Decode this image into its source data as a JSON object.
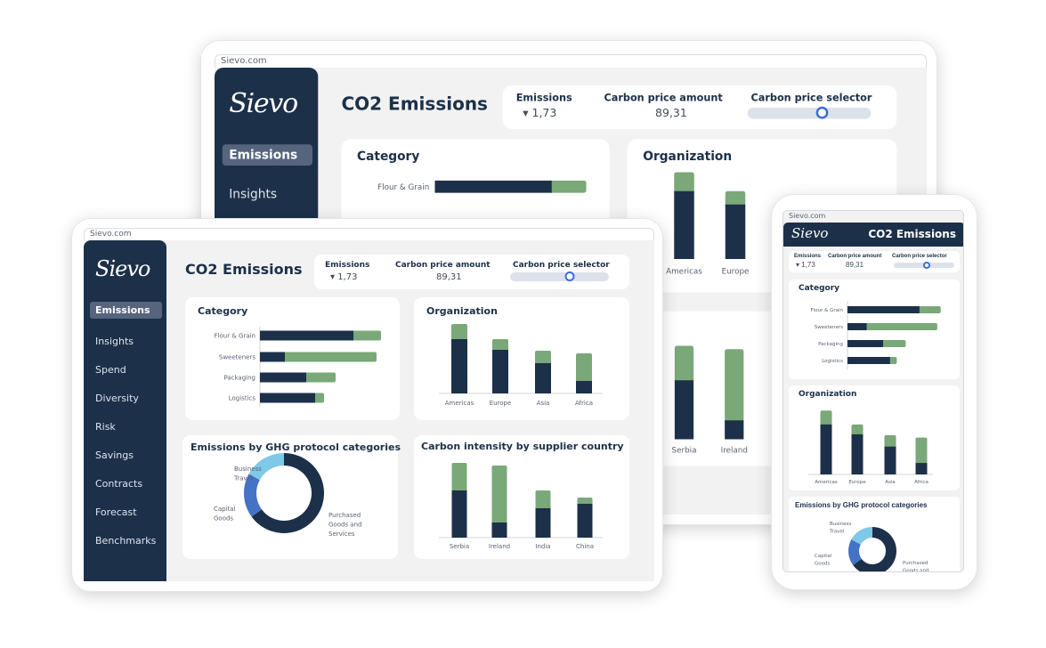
{
  "browser": {
    "url": "Sievo.com"
  },
  "app": {
    "logo": "Sievo",
    "page_title": "CO2 Emissions",
    "nav": [
      {
        "label": "Emissions",
        "active": true
      },
      {
        "label": "Insights"
      },
      {
        "label": "Spend"
      },
      {
        "label": "Diversity"
      },
      {
        "label": "Risk"
      },
      {
        "label": "Savings"
      },
      {
        "label": "Contracts"
      },
      {
        "label": "Forecast"
      },
      {
        "label": "Benchmarks"
      }
    ],
    "kpis": {
      "emissions_label": "Emissions",
      "emissions_value": "▾ 1,73",
      "price_label": "Carbon price amount",
      "price_value": "89,31",
      "selector_label": "Carbon price selector",
      "selector_level": 0.6
    }
  },
  "colors": {
    "primary": "#1c3049",
    "secondary": "#7aa878",
    "donut": [
      "#1c3049",
      "#4472c4",
      "#7ec8e8"
    ],
    "knob": "#3a6fd0"
  },
  "chart_data": [
    {
      "type": "bar",
      "orientation": "horizontal",
      "stacked": true,
      "title": "Category",
      "categories": [
        "Flour & Grain",
        "Sweeteners",
        "Packaging",
        "Logistics"
      ],
      "series": [
        {
          "values": [
            105,
            28,
            52,
            62
          ]
        },
        {
          "values": [
            31,
            103,
            33,
            10
          ]
        }
      ]
    },
    {
      "type": "bar",
      "stacked": true,
      "title": "Organization",
      "categories": [
        "Americas",
        "Europe",
        "Asia",
        "Africa"
      ],
      "series": [
        {
          "values": [
            61,
            49,
            34,
            14
          ]
        },
        {
          "values": [
            17,
            12,
            14,
            31
          ]
        }
      ]
    },
    {
      "type": "pie",
      "donut": true,
      "title": "Emissions by GHG protocol categories",
      "categories": [
        "Purchased Goods and Services",
        "Capital Goods",
        "Business Travel"
      ],
      "label_lines": [
        [
          "Purchased",
          "Goods and",
          "Services"
        ],
        [
          "Capital",
          "Goods"
        ],
        [
          "Business",
          "Travel"
        ]
      ],
      "values": [
        65,
        18,
        17
      ]
    },
    {
      "type": "bar",
      "stacked": true,
      "title": "Carbon intensity by supplier country",
      "categories": [
        "Serbia",
        "Ireland",
        "India",
        "China"
      ],
      "series": [
        {
          "values": [
            53,
            17,
            33,
            38
          ]
        },
        {
          "values": [
            31,
            64,
            20,
            7
          ]
        }
      ]
    }
  ]
}
